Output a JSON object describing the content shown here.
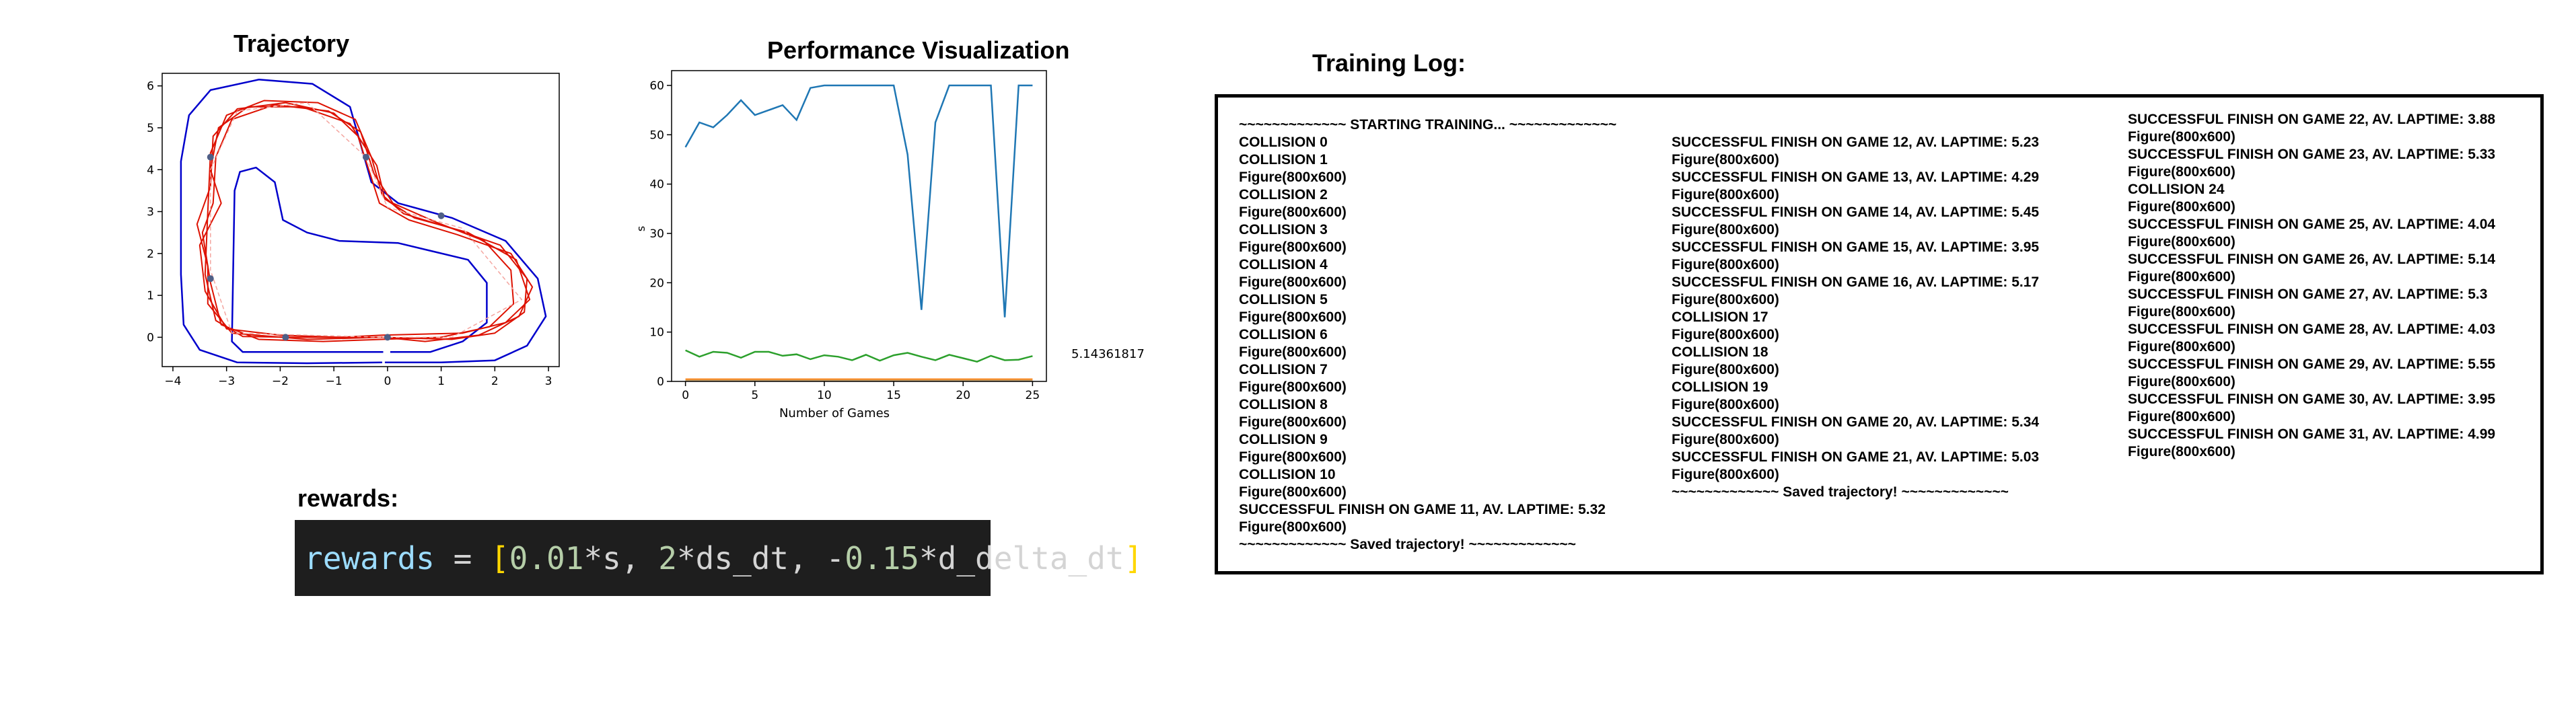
{
  "trajectory": {
    "title": "Trajectory",
    "x_ticks": [
      "−4",
      "−3",
      "−2",
      "−1",
      "0",
      "1",
      "2",
      "3"
    ],
    "y_ticks": [
      "0",
      "1",
      "2",
      "3",
      "4",
      "5",
      "6"
    ],
    "track_color": "#0000cc",
    "path_color": "#dd1100"
  },
  "performance": {
    "title": "Performance Visualization",
    "annotation": "5.14361817"
  },
  "chart_data": {
    "type": "line",
    "title": "Performance Visualization",
    "xlabel": "Number of Games",
    "ylabel": "s",
    "xlim": [
      -1,
      26
    ],
    "ylim": [
      0,
      63
    ],
    "x_ticks": [
      0,
      5,
      10,
      15,
      20,
      25
    ],
    "y_ticks": [
      0,
      10,
      20,
      30,
      40,
      50,
      60
    ],
    "grid": false,
    "x": [
      0,
      1,
      2,
      3,
      4,
      5,
      6,
      7,
      8,
      9,
      10,
      11,
      12,
      13,
      14,
      15,
      16,
      17,
      18,
      19,
      20,
      21,
      22,
      23,
      24,
      25
    ],
    "series": [
      {
        "color": "#1f77b4",
        "values": [
          47.5,
          52.5,
          51.5,
          54,
          57,
          54,
          55,
          56,
          53,
          59.5,
          60,
          60,
          60,
          60,
          60,
          60,
          46,
          14.5,
          52.5,
          60,
          60,
          60,
          60,
          13,
          60,
          60
        ]
      },
      {
        "color": "#2ca02c",
        "values": [
          6.3,
          5,
          6,
          5.8,
          4.8,
          6,
          6,
          5.2,
          5.5,
          4.5,
          5.3,
          5,
          4.3,
          5.4,
          4.2,
          5.3,
          5.8,
          5,
          4.3,
          5.4,
          4.7,
          4,
          5.2,
          4.3,
          4.4,
          5.14
        ]
      },
      {
        "color": "#ff7f0e",
        "values": [
          0.4,
          0.4,
          0.4,
          0.4,
          0.4,
          0.4,
          0.4,
          0.4,
          0.4,
          0.4,
          0.4,
          0.4,
          0.4,
          0.4,
          0.4,
          0.4,
          0.4,
          0.4,
          0.4,
          0.4,
          0.4,
          0.4,
          0.4,
          0.4,
          0.4,
          0.4
        ]
      },
      {
        "color": "#c8a26a",
        "values": [
          0.15,
          0.15,
          0.15,
          0.15,
          0.15,
          0.15,
          0.15,
          0.15,
          0.15,
          0.15,
          0.15,
          0.15,
          0.15,
          0.15,
          0.15,
          0.15,
          0.15,
          0.15,
          0.15,
          0.15,
          0.15,
          0.15,
          0.15,
          0.15,
          0.15,
          0.15
        ]
      }
    ]
  },
  "rewards": {
    "title": "rewards:",
    "code_tokens": [
      {
        "text": "rewards",
        "color": "#9cdcfe"
      },
      {
        "text": " = ",
        "color": "#d4d4d4"
      },
      {
        "text": "[",
        "color": "#ffd700"
      },
      {
        "text": "0.01",
        "color": "#b5cea8"
      },
      {
        "text": "*s, ",
        "color": "#d4d4d4"
      },
      {
        "text": "2",
        "color": "#b5cea8"
      },
      {
        "text": "*ds_dt, -",
        "color": "#d4d4d4"
      },
      {
        "text": "0.15",
        "color": "#b5cea8"
      },
      {
        "text": "*d_delta_dt",
        "color": "#d4d4d4"
      },
      {
        "text": "]",
        "color": "#ffd700"
      }
    ]
  },
  "training_log": {
    "title": "Training Log:",
    "columns": [
      {
        "lines": [
          "~~~~~~~~~~~~~ STARTING TRAINING... ~~~~~~~~~~~~~",
          "COLLISION 0",
          "COLLISION 1",
          "Figure(800x600)",
          "COLLISION 2",
          "Figure(800x600)",
          "COLLISION 3",
          "Figure(800x600)",
          "COLLISION 4",
          "Figure(800x600)",
          "COLLISION 5",
          "Figure(800x600)",
          "COLLISION 6",
          "Figure(800x600)",
          "COLLISION 7",
          "Figure(800x600)",
          "COLLISION 8",
          "Figure(800x600)",
          "COLLISION 9",
          "Figure(800x600)",
          "COLLISION 10",
          "Figure(800x600)",
          "SUCCESSFUL FINISH ON GAME 11, AV. LAPTIME: 5.32",
          "Figure(800x600)",
          "~~~~~~~~~~~~~ Saved trajectory! ~~~~~~~~~~~~~"
        ]
      },
      {
        "lines": [
          "SUCCESSFUL FINISH ON GAME 12, AV. LAPTIME: 5.23",
          "Figure(800x600)",
          "SUCCESSFUL FINISH ON GAME 13, AV. LAPTIME: 4.29",
          "Figure(800x600)",
          "SUCCESSFUL FINISH ON GAME 14, AV. LAPTIME: 5.45",
          "Figure(800x600)",
          "SUCCESSFUL FINISH ON GAME 15, AV. LAPTIME: 3.95",
          "Figure(800x600)",
          "SUCCESSFUL FINISH ON GAME 16, AV. LAPTIME: 5.17",
          "Figure(800x600)",
          "COLLISION 17",
          "Figure(800x600)",
          "COLLISION 18",
          "Figure(800x600)",
          "COLLISION 19",
          "Figure(800x600)",
          "SUCCESSFUL FINISH ON GAME 20, AV. LAPTIME: 5.34",
          "Figure(800x600)",
          "SUCCESSFUL FINISH ON GAME 21, AV. LAPTIME: 5.03",
          "Figure(800x600)",
          "~~~~~~~~~~~~~ Saved trajectory! ~~~~~~~~~~~~~"
        ]
      },
      {
        "lines": [
          "SUCCESSFUL FINISH ON GAME 22, AV. LAPTIME: 3.88",
          "Figure(800x600)",
          "SUCCESSFUL FINISH ON GAME 23, AV. LAPTIME: 5.33",
          "Figure(800x600)",
          "COLLISION 24",
          "Figure(800x600)",
          "SUCCESSFUL FINISH ON GAME 25, AV. LAPTIME: 4.04",
          "Figure(800x600)",
          "SUCCESSFUL FINISH ON GAME 26, AV. LAPTIME: 5.14",
          "Figure(800x600)",
          "SUCCESSFUL FINISH ON GAME 27, AV. LAPTIME: 5.3",
          "Figure(800x600)",
          "SUCCESSFUL FINISH ON GAME 28, AV. LAPTIME: 4.03",
          "Figure(800x600)",
          "SUCCESSFUL FINISH ON GAME 29, AV. LAPTIME: 5.55",
          "Figure(800x600)",
          "SUCCESSFUL FINISH ON GAME 30, AV. LAPTIME: 3.95",
          "Figure(800x600)",
          "SUCCESSFUL FINISH ON GAME 31, AV. LAPTIME: 4.99",
          "Figure(800x600)"
        ]
      }
    ]
  }
}
